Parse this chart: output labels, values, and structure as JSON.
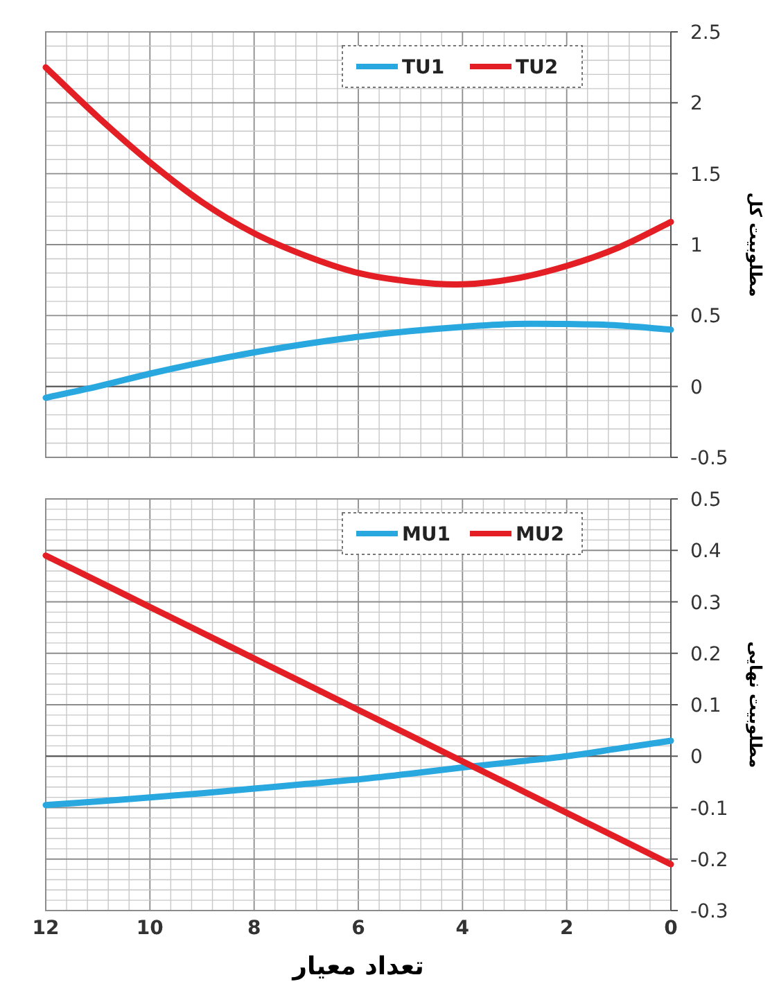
{
  "chart_data": [
    {
      "type": "line",
      "ylabel": "مطلوبیت کل",
      "x": [
        12,
        11,
        10,
        9,
        8,
        7,
        6,
        5,
        4,
        3,
        2,
        1,
        0
      ],
      "xlim": [
        12,
        0
      ],
      "xticks": [
        12,
        10,
        8,
        6,
        4,
        2,
        0
      ],
      "ylim": [
        -0.5,
        2.5
      ],
      "yticks": [
        -0.5,
        0,
        0.5,
        1,
        1.5,
        2,
        2.5
      ],
      "grid": true,
      "legend": "top right",
      "tick_labels": "y",
      "series": [
        {
          "name": "TU1",
          "color": "#29a8e0",
          "values": [
            -0.08,
            0.0,
            0.09,
            0.17,
            0.24,
            0.3,
            0.35,
            0.39,
            0.42,
            0.44,
            0.44,
            0.43,
            0.4
          ]
        },
        {
          "name": "TU2",
          "color": "#e31e24",
          "values": [
            2.25,
            1.9,
            1.58,
            1.3,
            1.08,
            0.92,
            0.8,
            0.74,
            0.72,
            0.76,
            0.85,
            0.98,
            1.16
          ]
        }
      ]
    },
    {
      "type": "line",
      "ylabel": "مطلوبیت نهایی",
      "xlabel": "تعداد معیار",
      "x": [
        12,
        11,
        10,
        9,
        8,
        7,
        6,
        5,
        4,
        3,
        2,
        1,
        0
      ],
      "xlim": [
        12,
        0
      ],
      "xticks": [
        12,
        10,
        8,
        6,
        4,
        2,
        0
      ],
      "ylim": [
        -0.3,
        0.5
      ],
      "yticks": [
        -0.3,
        -0.2,
        -0.1,
        0,
        0.1,
        0.2,
        0.3,
        0.4,
        0.5
      ],
      "grid": true,
      "legend": "top right",
      "series": [
        {
          "name": "MU1",
          "color": "#29a8e0",
          "values": [
            -0.095,
            -0.088,
            -0.08,
            -0.072,
            -0.063,
            -0.054,
            -0.045,
            -0.034,
            -0.022,
            -0.011,
            0.0,
            0.015,
            0.03
          ]
        },
        {
          "name": "MU2",
          "color": "#e31e24",
          "values": [
            0.39,
            0.34,
            0.29,
            0.24,
            0.19,
            0.14,
            0.09,
            0.04,
            -0.01,
            -0.06,
            -0.11,
            -0.16,
            -0.21
          ]
        }
      ]
    }
  ]
}
